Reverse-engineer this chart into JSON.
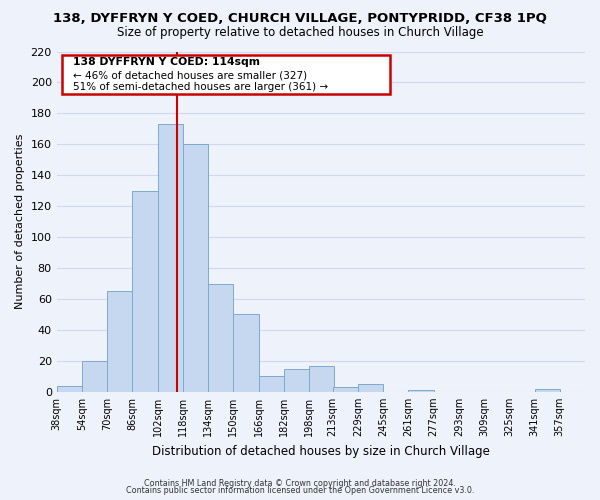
{
  "title": "138, DYFFRYN Y COED, CHURCH VILLAGE, PONTYPRIDD, CF38 1PQ",
  "subtitle": "Size of property relative to detached houses in Church Village",
  "xlabel": "Distribution of detached houses by size in Church Village",
  "ylabel": "Number of detached properties",
  "bar_color": "#c5d8ef",
  "bar_edge_color": "#7eaacc",
  "vline_x": 114,
  "vline_color": "#cc0000",
  "categories": [
    "38sqm",
    "54sqm",
    "70sqm",
    "86sqm",
    "102sqm",
    "118sqm",
    "134sqm",
    "150sqm",
    "166sqm",
    "182sqm",
    "198sqm",
    "213sqm",
    "229sqm",
    "245sqm",
    "261sqm",
    "277sqm",
    "293sqm",
    "309sqm",
    "325sqm",
    "341sqm",
    "357sqm"
  ],
  "bin_edges": [
    38,
    54,
    70,
    86,
    102,
    118,
    134,
    150,
    166,
    182,
    198,
    213,
    229,
    245,
    261,
    277,
    293,
    309,
    325,
    341,
    357,
    373
  ],
  "values": [
    4,
    20,
    65,
    130,
    173,
    160,
    70,
    50,
    10,
    15,
    17,
    3,
    5,
    0,
    1,
    0,
    0,
    0,
    0,
    2,
    0
  ],
  "ylim": [
    0,
    220
  ],
  "yticks": [
    0,
    20,
    40,
    60,
    80,
    100,
    120,
    140,
    160,
    180,
    200,
    220
  ],
  "annotation_title": "138 DYFFRYN Y COED: 114sqm",
  "annotation_line1": "← 46% of detached houses are smaller (327)",
  "annotation_line2": "51% of semi-detached houses are larger (361) →",
  "annotation_box_color": "white",
  "annotation_box_edge": "#cc0000",
  "footnote1": "Contains HM Land Registry data © Crown copyright and database right 2024.",
  "footnote2": "Contains public sector information licensed under the Open Government Licence v3.0.",
  "background_color": "#eef2fb",
  "grid_color": "#d0d8ee",
  "title_fontsize": 9.5,
  "subtitle_fontsize": 8.5
}
